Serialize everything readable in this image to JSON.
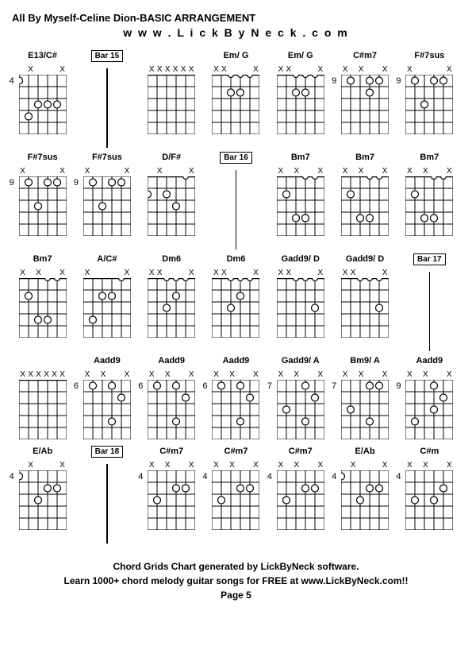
{
  "title": "All By Myself-Celine Dion-BASIC ARRANGEMENT",
  "url": "w w w . L i c k B y N e c k . c o m",
  "footer": {
    "line1": "Chord Grids Chart generated by LickByNeck software.",
    "line2": "Learn 1000+ chord melody guitar songs for FREE at www.LickByNeck.com!!",
    "page": "Page 5"
  },
  "diagram_style": {
    "width": 60,
    "height": 75,
    "strings": 6,
    "frets": 5,
    "line_color": "#000",
    "dot_color": "#fff",
    "dot_stroke": "#000"
  },
  "chords": [
    {
      "label": "E13/C#",
      "fret": "4",
      "markers": [
        "",
        "X",
        "",
        "",
        "",
        "X"
      ],
      "dots": [
        [
          0,
          1
        ],
        [
          2,
          3
        ],
        [
          3,
          3
        ],
        [
          4,
          3
        ],
        [
          1,
          4
        ]
      ]
    },
    {
      "label": "Bar 15",
      "type": "bar"
    },
    {
      "label": "",
      "fret": "",
      "markers": [
        "X",
        "X",
        "X",
        "X",
        "X",
        "X"
      ],
      "dots": []
    },
    {
      "label": "Em/ G",
      "fret": "",
      "markers": [
        "X",
        "X",
        "",
        "",
        "",
        "X"
      ],
      "dots": [
        [
          2,
          0
        ],
        [
          3,
          0
        ],
        [
          4,
          0
        ],
        [
          2,
          2
        ],
        [
          3,
          2
        ]
      ]
    },
    {
      "label": "Em/ G",
      "fret": "",
      "markers": [
        "X",
        "X",
        "",
        "",
        "",
        "X"
      ],
      "dots": [
        [
          2,
          0
        ],
        [
          3,
          0
        ],
        [
          4,
          0
        ],
        [
          2,
          2
        ],
        [
          3,
          2
        ]
      ]
    },
    {
      "label": "C#m7",
      "fret": "9",
      "markers": [
        "X",
        "",
        "X",
        "",
        "",
        "X"
      ],
      "dots": [
        [
          1,
          1
        ],
        [
          3,
          1
        ],
        [
          4,
          1
        ],
        [
          3,
          2
        ]
      ]
    },
    {
      "label": "F#7sus",
      "fret": "9",
      "markers": [
        "X",
        "",
        "",
        "",
        "",
        "X"
      ],
      "dots": [
        [
          1,
          1
        ],
        [
          3,
          1
        ],
        [
          4,
          1
        ],
        [
          2,
          3
        ]
      ]
    },
    {
      "label": "F#7sus",
      "fret": "9",
      "markers": [
        "X",
        "",
        "",
        "",
        "",
        "X"
      ],
      "dots": [
        [
          1,
          1
        ],
        [
          3,
          1
        ],
        [
          4,
          1
        ],
        [
          2,
          3
        ]
      ]
    },
    {
      "label": "F#7sus",
      "fret": "9",
      "markers": [
        "X",
        "",
        "",
        "",
        "",
        "X"
      ],
      "dots": [
        [
          1,
          1
        ],
        [
          3,
          1
        ],
        [
          4,
          1
        ],
        [
          2,
          3
        ]
      ]
    },
    {
      "label": "D/F#",
      "fret": "",
      "markers": [
        "",
        "X",
        "",
        "",
        "",
        "X"
      ],
      "dots": [
        [
          4,
          0
        ],
        [
          0,
          2
        ],
        [
          2,
          2
        ],
        [
          3,
          3
        ]
      ]
    },
    {
      "label": "Bar 16",
      "type": "bar"
    },
    {
      "label": "Bm7",
      "fret": "",
      "markers": [
        "X",
        "",
        "X",
        "",
        "",
        "X"
      ],
      "dots": [
        [
          3,
          0
        ],
        [
          4,
          0
        ],
        [
          1,
          2
        ],
        [
          2,
          4
        ],
        [
          3,
          4
        ]
      ]
    },
    {
      "label": "Bm7",
      "fret": "",
      "markers": [
        "X",
        "",
        "X",
        "",
        "",
        "X"
      ],
      "dots": [
        [
          3,
          0
        ],
        [
          4,
          0
        ],
        [
          1,
          2
        ],
        [
          2,
          4
        ],
        [
          3,
          4
        ]
      ]
    },
    {
      "label": "Bm7",
      "fret": "",
      "markers": [
        "X",
        "",
        "X",
        "",
        "",
        "X"
      ],
      "dots": [
        [
          3,
          0
        ],
        [
          4,
          0
        ],
        [
          1,
          2
        ],
        [
          2,
          4
        ],
        [
          3,
          4
        ]
      ]
    },
    {
      "label": "Bm7",
      "fret": "",
      "markers": [
        "X",
        "",
        "X",
        "",
        "",
        "X"
      ],
      "dots": [
        [
          3,
          0
        ],
        [
          4,
          0
        ],
        [
          1,
          2
        ],
        [
          2,
          4
        ],
        [
          3,
          4
        ]
      ]
    },
    {
      "label": "A/C#",
      "fret": "",
      "markers": [
        "X",
        "",
        "",
        "",
        "",
        "X"
      ],
      "dots": [
        [
          4,
          0
        ],
        [
          2,
          2
        ],
        [
          3,
          2
        ],
        [
          1,
          4
        ]
      ]
    },
    {
      "label": "Dm6",
      "fret": "",
      "markers": [
        "X",
        "X",
        "",
        "",
        "",
        "X"
      ],
      "dots": [
        [
          2,
          0
        ],
        [
          3,
          0
        ],
        [
          4,
          0
        ],
        [
          3,
          2
        ],
        [
          2,
          3
        ]
      ]
    },
    {
      "label": "Dm6",
      "fret": "",
      "markers": [
        "X",
        "X",
        "",
        "",
        "",
        "X"
      ],
      "dots": [
        [
          2,
          0
        ],
        [
          3,
          0
        ],
        [
          4,
          0
        ],
        [
          3,
          2
        ],
        [
          2,
          3
        ]
      ]
    },
    {
      "label": "Gadd9/ D",
      "fret": "",
      "markers": [
        "X",
        "X",
        "",
        "",
        "",
        "X"
      ],
      "dots": [
        [
          2,
          0
        ],
        [
          3,
          0
        ],
        [
          4,
          0
        ],
        [
          4,
          3
        ]
      ]
    },
    {
      "label": "Gadd9/ D",
      "fret": "",
      "markers": [
        "X",
        "X",
        "",
        "",
        "",
        "X"
      ],
      "dots": [
        [
          2,
          0
        ],
        [
          3,
          0
        ],
        [
          4,
          0
        ],
        [
          4,
          3
        ]
      ]
    },
    {
      "label": "Bar 17",
      "type": "bar"
    },
    {
      "label": "",
      "fret": "",
      "markers": [
        "X",
        "X",
        "X",
        "X",
        "X",
        "X"
      ],
      "dots": []
    },
    {
      "label": "Aadd9",
      "fret": "6",
      "markers": [
        "X",
        "",
        "X",
        "",
        "",
        "X"
      ],
      "dots": [
        [
          1,
          1
        ],
        [
          3,
          1
        ],
        [
          4,
          2
        ],
        [
          3,
          4
        ]
      ]
    },
    {
      "label": "Aadd9",
      "fret": "6",
      "markers": [
        "X",
        "",
        "X",
        "",
        "",
        "X"
      ],
      "dots": [
        [
          1,
          1
        ],
        [
          3,
          1
        ],
        [
          4,
          2
        ],
        [
          3,
          4
        ]
      ]
    },
    {
      "label": "Aadd9",
      "fret": "6",
      "markers": [
        "X",
        "",
        "X",
        "",
        "",
        "X"
      ],
      "dots": [
        [
          1,
          1
        ],
        [
          3,
          1
        ],
        [
          4,
          2
        ],
        [
          3,
          4
        ]
      ]
    },
    {
      "label": "Gadd9/ A",
      "fret": "7",
      "markers": [
        "X",
        "",
        "X",
        "",
        "",
        "X"
      ],
      "dots": [
        [
          3,
          1
        ],
        [
          4,
          2
        ],
        [
          1,
          3
        ],
        [
          3,
          4
        ]
      ]
    },
    {
      "label": "Bm9/ A",
      "fret": "7",
      "markers": [
        "X",
        "",
        "X",
        "",
        "",
        "X"
      ],
      "dots": [
        [
          3,
          1
        ],
        [
          4,
          1
        ],
        [
          1,
          3
        ],
        [
          3,
          4
        ]
      ]
    },
    {
      "label": "Aadd9",
      "fret": "9",
      "markers": [
        "X",
        "",
        "X",
        "",
        "",
        "X"
      ],
      "dots": [
        [
          3,
          1
        ],
        [
          4,
          2
        ],
        [
          1,
          4
        ],
        [
          3,
          3
        ]
      ]
    },
    {
      "label": "E/Ab",
      "fret": "4",
      "markers": [
        "",
        "X",
        "",
        "",
        "",
        "X"
      ],
      "dots": [
        [
          0,
          1
        ],
        [
          3,
          2
        ],
        [
          2,
          3
        ],
        [
          4,
          2
        ]
      ]
    },
    {
      "label": "Bar 18",
      "type": "bar"
    },
    {
      "label": "C#m7",
      "fret": "4",
      "markers": [
        "X",
        "",
        "X",
        "",
        "",
        "X"
      ],
      "dots": [
        [
          4,
          2
        ],
        [
          1,
          3
        ],
        [
          3,
          2
        ]
      ]
    },
    {
      "label": "C#m7",
      "fret": "4",
      "markers": [
        "X",
        "",
        "X",
        "",
        "",
        "X"
      ],
      "dots": [
        [
          4,
          2
        ],
        [
          1,
          3
        ],
        [
          3,
          2
        ]
      ]
    },
    {
      "label": "C#m7",
      "fret": "4",
      "markers": [
        "X",
        "",
        "X",
        "",
        "",
        "X"
      ],
      "dots": [
        [
          4,
          2
        ],
        [
          1,
          3
        ],
        [
          3,
          2
        ]
      ]
    },
    {
      "label": "E/Ab",
      "fret": "4",
      "markers": [
        "",
        "X",
        "",
        "",
        "",
        "X"
      ],
      "dots": [
        [
          0,
          1
        ],
        [
          3,
          2
        ],
        [
          2,
          3
        ],
        [
          4,
          2
        ]
      ]
    },
    {
      "label": "C#m",
      "fret": "4",
      "markers": [
        "X",
        "",
        "X",
        "",
        "",
        "X"
      ],
      "dots": [
        [
          4,
          2
        ],
        [
          1,
          3
        ],
        [
          3,
          3
        ]
      ]
    }
  ]
}
